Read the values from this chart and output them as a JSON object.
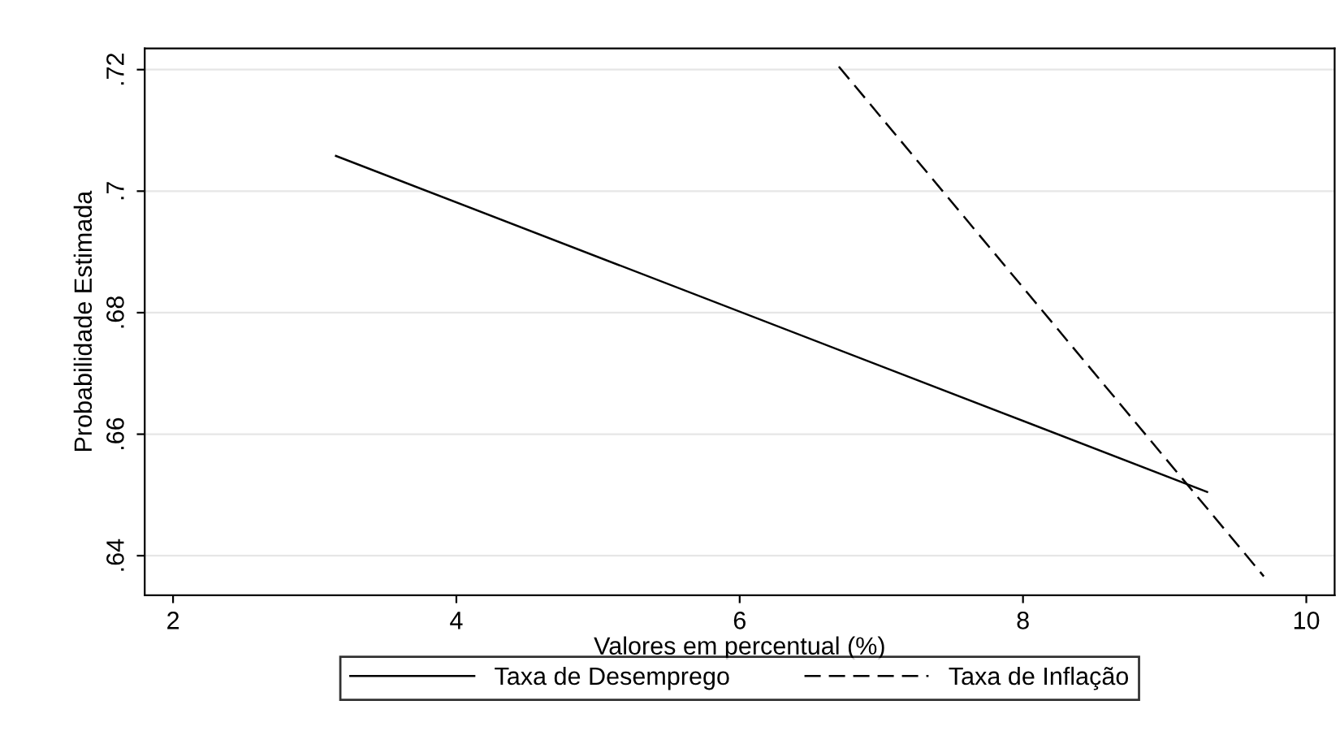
{
  "chart_data": {
    "type": "line",
    "xlabel": "Valores em percentual (%)",
    "ylabel": "Probabilidade Estimada",
    "series": [
      {
        "name": "Taxa de Desemprego",
        "color": "#000000",
        "line_style": "solid",
        "x": [
          3.15,
          9.3
        ],
        "values": [
          0.7058,
          0.6505
        ]
      },
      {
        "name": "Taxa de Inflação",
        "color": "#000000",
        "line_style": "dashed",
        "x": [
          6.7,
          9.7
        ],
        "values": [
          0.7205,
          0.6366
        ]
      }
    ],
    "xlim": [
      1.8,
      10.2
    ],
    "ylim": [
      0.6335,
      0.7235
    ],
    "xticks": [
      2,
      4,
      6,
      8,
      10
    ],
    "yticks": [
      {
        "value": 0.64,
        "label": ".64"
      },
      {
        "value": 0.66,
        "label": ".66"
      },
      {
        "value": 0.68,
        "label": ".68"
      },
      {
        "value": 0.7,
        "label": ".7"
      },
      {
        "value": 0.72,
        "label": ".72"
      }
    ],
    "grid": "y",
    "legend": "bottom",
    "marker": "none"
  }
}
